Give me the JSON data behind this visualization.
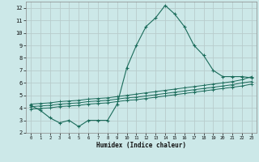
{
  "title": "",
  "xlabel": "Humidex (Indice chaleur)",
  "background_color": "#cce8e8",
  "grid_color": "#b8cccc",
  "line_color": "#1a6b5a",
  "xlim": [
    -0.5,
    23.5
  ],
  "ylim": [
    2,
    12.5
  ],
  "yticks": [
    2,
    3,
    4,
    5,
    6,
    7,
    8,
    9,
    10,
    11,
    12
  ],
  "xticks": [
    0,
    1,
    2,
    3,
    4,
    5,
    6,
    7,
    8,
    9,
    10,
    11,
    12,
    13,
    14,
    15,
    16,
    17,
    18,
    19,
    20,
    21,
    22,
    23
  ],
  "series_main": {
    "x": [
      0,
      1,
      2,
      3,
      4,
      5,
      6,
      7,
      8,
      9,
      10,
      11,
      12,
      13,
      14,
      15,
      16,
      17,
      18,
      19,
      20,
      21,
      22,
      23
    ],
    "y": [
      4.2,
      3.8,
      3.2,
      2.8,
      3.0,
      2.5,
      3.0,
      3.0,
      3.0,
      4.3,
      7.2,
      9.0,
      10.5,
      11.2,
      12.2,
      11.5,
      10.5,
      9.0,
      8.2,
      7.0,
      6.5,
      6.5,
      6.5,
      6.4
    ]
  },
  "series_linear": [
    {
      "x": [
        0,
        1,
        2,
        3,
        4,
        5,
        6,
        7,
        8,
        9,
        10,
        11,
        12,
        13,
        14,
        15,
        16,
        17,
        18,
        19,
        20,
        21,
        22,
        23
      ],
      "y": [
        4.1,
        4.15,
        4.2,
        4.3,
        4.35,
        4.4,
        4.5,
        4.55,
        4.6,
        4.7,
        4.8,
        4.85,
        4.95,
        5.05,
        5.15,
        5.25,
        5.35,
        5.45,
        5.55,
        5.65,
        5.75,
        5.85,
        6.0,
        6.1
      ]
    },
    {
      "x": [
        0,
        1,
        2,
        3,
        4,
        5,
        6,
        7,
        8,
        9,
        10,
        11,
        12,
        13,
        14,
        15,
        16,
        17,
        18,
        19,
        20,
        21,
        22,
        23
      ],
      "y": [
        3.9,
        3.95,
        4.0,
        4.1,
        4.15,
        4.2,
        4.3,
        4.35,
        4.4,
        4.5,
        4.6,
        4.65,
        4.75,
        4.85,
        4.95,
        5.05,
        5.15,
        5.25,
        5.35,
        5.45,
        5.55,
        5.65,
        5.75,
        5.9
      ]
    },
    {
      "x": [
        0,
        1,
        2,
        3,
        4,
        5,
        6,
        7,
        8,
        9,
        10,
        11,
        12,
        13,
        14,
        15,
        16,
        17,
        18,
        19,
        20,
        21,
        22,
        23
      ],
      "y": [
        4.3,
        4.35,
        4.4,
        4.5,
        4.55,
        4.6,
        4.7,
        4.75,
        4.8,
        4.9,
        5.0,
        5.1,
        5.2,
        5.3,
        5.4,
        5.5,
        5.6,
        5.7,
        5.8,
        5.9,
        6.0,
        6.1,
        6.25,
        6.5
      ]
    }
  ]
}
